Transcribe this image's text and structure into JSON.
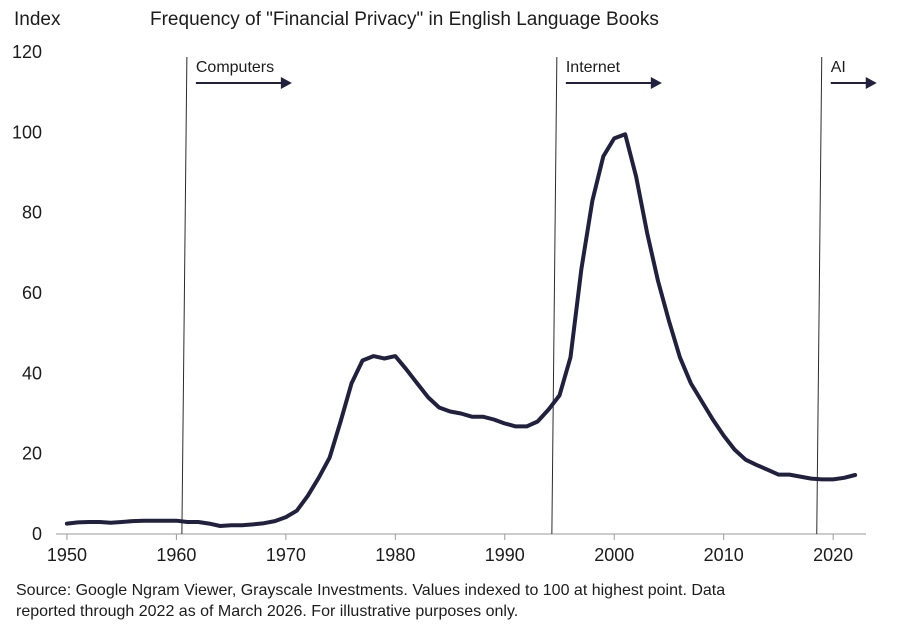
{
  "header": {
    "y_unit": "Index",
    "title": "Frequency of \"Financial Privacy\" in English Language Books"
  },
  "footer": {
    "source_line1": "Source: Google Ngram Viewer, Grayscale Investments. Values indexed to 100 at highest point. Data",
    "source_line2": "reported through 2022 as of March 2026. For illustrative purposes only."
  },
  "colors": {
    "series": "#22203f",
    "axis": "#9a9a9a",
    "marker_line": "#2b2b2b"
  },
  "chart_data": {
    "type": "line",
    "title": "Frequency of \"Financial Privacy\" in English Language Books",
    "ylabel": "Index",
    "xlabel": "",
    "xlim": [
      1949,
      2023
    ],
    "ylim": [
      0,
      120
    ],
    "xticks": [
      1950,
      1960,
      1970,
      1980,
      1990,
      2000,
      2010,
      2020
    ],
    "yticks": [
      0,
      20,
      40,
      60,
      80,
      100,
      120
    ],
    "grid": false,
    "series": [
      {
        "x": [
          1950,
          1951,
          1952,
          1953,
          1954,
          1955,
          1956,
          1957,
          1958,
          1959,
          1960,
          1961,
          1962,
          1963,
          1964,
          1965,
          1966,
          1967,
          1968,
          1969,
          1970,
          1971,
          1972,
          1973,
          1974,
          1975,
          1976,
          1977,
          1978,
          1979,
          1980,
          1981,
          1982,
          1983,
          1984,
          1985,
          1986,
          1987,
          1988,
          1989,
          1990,
          1991,
          1992,
          1993,
          1994,
          1995,
          1996,
          1997,
          1998,
          1999,
          2000,
          2001,
          2002,
          2003,
          2004,
          2005,
          2006,
          2007,
          2008,
          2009,
          2010,
          2011,
          2012,
          2013,
          2014,
          2015,
          2016,
          2017,
          2018,
          2019,
          2020,
          2021,
          2022
        ],
        "values": [
          2.6,
          2.9,
          3.0,
          3.0,
          2.8,
          3.0,
          3.2,
          3.3,
          3.3,
          3.3,
          3.3,
          3.0,
          3.0,
          2.6,
          2.0,
          2.2,
          2.2,
          2.4,
          2.7,
          3.2,
          4.2,
          5.8,
          9.5,
          14,
          19,
          28,
          37.5,
          43.2,
          44.3,
          43.7,
          44.3,
          41,
          37.5,
          34,
          31.5,
          30.5,
          30,
          29.2,
          29.2,
          28.5,
          27.5,
          26.8,
          26.8,
          28,
          31,
          34.5,
          44,
          66,
          83,
          94,
          98.5,
          99.5,
          89,
          75,
          63,
          53,
          44,
          37.5,
          33,
          28.5,
          24.5,
          21,
          18.5,
          17.2,
          16,
          14.8,
          14.8,
          14.3,
          13.8,
          13.6,
          13.6,
          14,
          14.7
        ]
      }
    ],
    "annotations": [
      {
        "label": "Computers",
        "x": 1960.5
      },
      {
        "label": "Internet",
        "x": 1994.3
      },
      {
        "label": "AI",
        "x": 2018.5
      }
    ]
  }
}
